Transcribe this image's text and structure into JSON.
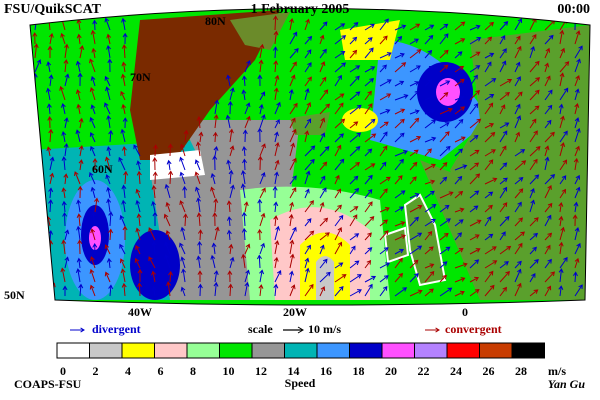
{
  "header": {
    "source": "FSU/QuikSCAT",
    "date": "1 February 2005",
    "time": "00:00"
  },
  "map": {
    "lat_labels": [
      "80N",
      "70N",
      "60N",
      "50N"
    ],
    "lon_labels": [
      "40W",
      "20W",
      "0"
    ]
  },
  "legend": {
    "divergent": "divergent",
    "divergent_color": "#0000cc",
    "scale_label": "scale",
    "scale_value": "10 m/s",
    "convergent": "convergent",
    "convergent_color": "#aa0000"
  },
  "colorbar": {
    "title": "Speed",
    "unit": "m/s",
    "ticks": [
      0,
      2,
      4,
      6,
      8,
      10,
      12,
      14,
      16,
      18,
      20,
      22,
      24,
      26,
      28
    ],
    "colors": [
      "#ffffff",
      "#c8c8c8",
      "#ffff00",
      "#ffc8c8",
      "#96ff96",
      "#00e600",
      "#969696",
      "#00b4b4",
      "#3c96ff",
      "#0000c8",
      "#ff50ff",
      "#b482ff",
      "#ff0000",
      "#c83c00",
      "#000000"
    ]
  },
  "footer": {
    "left": "COAPS-FSU",
    "right": "Yan Gu"
  }
}
